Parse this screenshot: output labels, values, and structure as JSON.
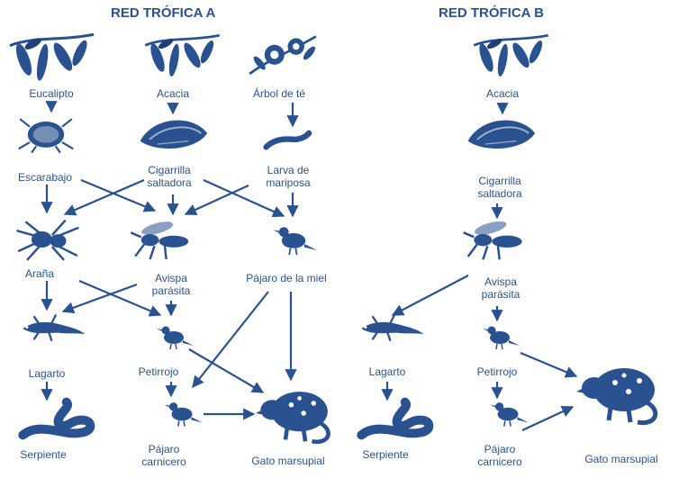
{
  "colors": {
    "ink": "#2a5290",
    "ink_dark": "#1f3f78",
    "background": "#ffffff"
  },
  "web_a": {
    "title": "RED TRÓFICA A",
    "labels": {
      "eucalipto": "Eucalipto",
      "acacia": "Acacia",
      "arbol_de_te": "Árbol de té",
      "escarabajo": "Escarabajo",
      "cigarrilla_1": "Cigarrilla",
      "cigarrilla_2": "saltadora",
      "larva_1": "Larva de",
      "larva_2": "mariposa",
      "arana": "Araña",
      "avispa_1": "Avispa",
      "avispa_2": "parásita",
      "pajaro_miel": "Pájaro de la miel",
      "lagarto": "Lagarto",
      "petirrojo": "Petirrojo",
      "serpiente": "Serpiente",
      "carnicero_1": "Pájaro",
      "carnicero_2": "carnicero",
      "gato": "Gato marsupial"
    }
  },
  "web_b": {
    "title": "RED TRÓFICA B",
    "labels": {
      "acacia": "Acacia",
      "cigarrilla_1": "Cigarrilla",
      "cigarrilla_2": "saltadora",
      "avispa_1": "Avispa",
      "avispa_2": "parásita",
      "lagarto": "Lagarto",
      "petirrojo": "Petirrojo",
      "serpiente": "Serpiente",
      "carnicero_1": "Pájaro",
      "carnicero_2": "carnicero",
      "gato": "Gato marsupial"
    }
  },
  "icons": [
    "eucalyptus-icon",
    "acacia-icon",
    "tea-tree-icon",
    "beetle-icon",
    "leafhopper-icon",
    "caterpillar-icon",
    "spider-icon",
    "wasp-icon",
    "honeyeater-icon",
    "lizard-icon",
    "robin-icon",
    "snake-icon",
    "butcherbird-icon",
    "quoll-icon"
  ]
}
